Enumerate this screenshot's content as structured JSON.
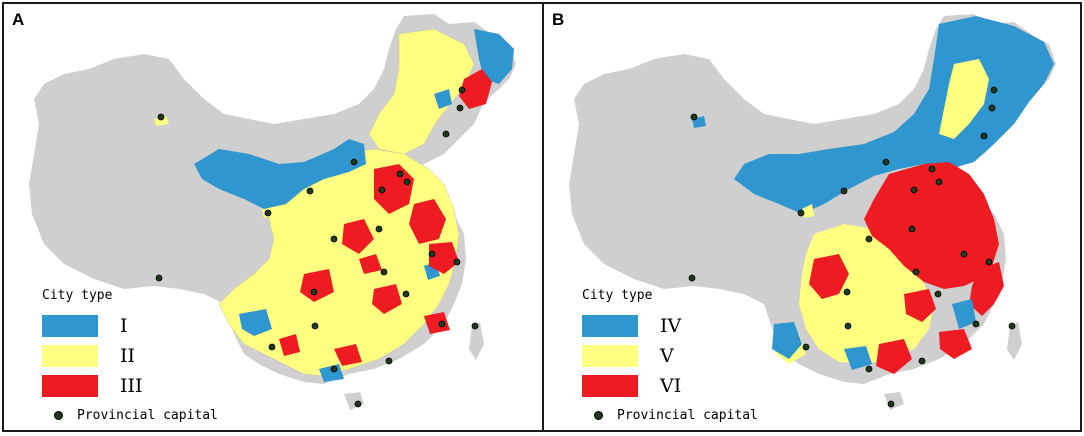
{
  "colors": {
    "type_i": "#2f96d0",
    "type_ii": "#ffff80",
    "type_iii": "#ee1b23",
    "type_iv": "#2f96d0",
    "type_v": "#ffff80",
    "type_vi": "#ee1b23",
    "background_land": "#cfcfcf",
    "capital": "#1f3a1a"
  },
  "panels": [
    {
      "label": "A",
      "legend_title": "City type",
      "legend": [
        {
          "label": "I",
          "color": "#2f96d0"
        },
        {
          "label": "II",
          "color": "#ffff80"
        },
        {
          "label": "III",
          "color": "#ee1b23"
        }
      ],
      "capital_label": "Provincial capital"
    },
    {
      "label": "B",
      "legend_title": "City type",
      "legend": [
        {
          "label": "IV",
          "color": "#2f96d0"
        },
        {
          "label": "V",
          "color": "#ffff80"
        },
        {
          "label": "VI",
          "color": "#ee1b23"
        }
      ],
      "capital_label": "Provincial capital"
    }
  ]
}
